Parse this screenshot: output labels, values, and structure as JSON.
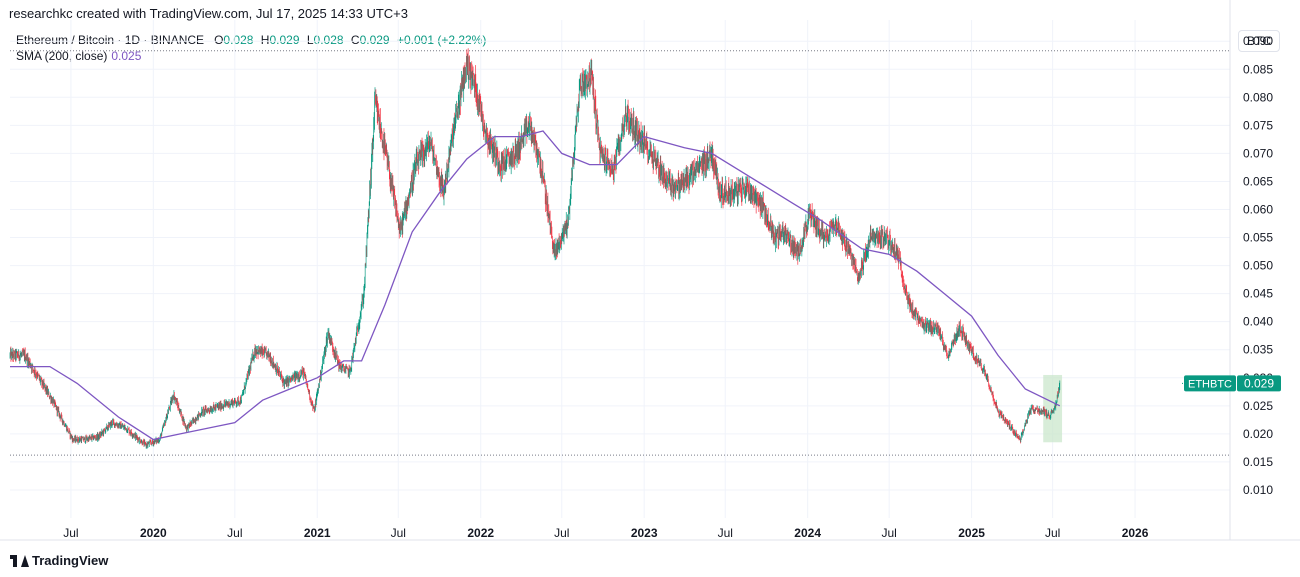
{
  "header": {
    "caption": "researchkc created with TradingView.com, Jul 17, 2025 14:33 UTC+3"
  },
  "legend": {
    "symbol": "Ethereum / Bitcoin · 1D · BINANCE",
    "open_label": "O",
    "open": "0.028",
    "high_label": "H",
    "high": "0.029",
    "low_label": "L",
    "low": "0.028",
    "close_label": "C",
    "close": "0.029",
    "change": "+0.001 (+2.22%)",
    "sma_label": "SMA (200, close)",
    "sma_value": "0.025"
  },
  "currency": "BTC",
  "price_tag": {
    "ticker": "ETHBTC",
    "price": "0.029"
  },
  "footer": {
    "brand": "TradingView"
  },
  "colors": {
    "up": "#089981",
    "down": "#f23645",
    "sma": "#7e57c2",
    "highlight": "#c8e6c9",
    "grid": "#f0f3fa",
    "text": "#131722"
  },
  "chart_data": {
    "type": "candlestick",
    "y_range": [
      0.005,
      0.092
    ],
    "y_ticks": [
      "0.090",
      "0.085",
      "0.080",
      "0.075",
      "0.070",
      "0.065",
      "0.060",
      "0.055",
      "0.050",
      "0.045",
      "0.040",
      "0.035",
      "0.030",
      "0.025",
      "0.020",
      "0.015",
      "0.010"
    ],
    "x_range": [
      "2019-02-15",
      "2026-08-01"
    ],
    "x_ticks": [
      {
        "label": "Jul",
        "date": "2019-07-01",
        "bold": false
      },
      {
        "label": "2020",
        "date": "2020-01-01",
        "bold": true
      },
      {
        "label": "Jul",
        "date": "2020-07-01",
        "bold": false
      },
      {
        "label": "2021",
        "date": "2021-01-01",
        "bold": true
      },
      {
        "label": "Jul",
        "date": "2021-07-01",
        "bold": false
      },
      {
        "label": "2022",
        "date": "2022-01-01",
        "bold": true
      },
      {
        "label": "Jul",
        "date": "2022-07-01",
        "bold": false
      },
      {
        "label": "2023",
        "date": "2023-01-01",
        "bold": true
      },
      {
        "label": "Jul",
        "date": "2023-07-01",
        "bold": false
      },
      {
        "label": "2024",
        "date": "2024-01-01",
        "bold": true
      },
      {
        "label": "Jul",
        "date": "2024-07-01",
        "bold": false
      },
      {
        "label": "2025",
        "date": "2025-01-01",
        "bold": true
      },
      {
        "label": "Jul",
        "date": "2025-07-01",
        "bold": false
      },
      {
        "label": "2026",
        "date": "2026-01-01",
        "bold": true
      }
    ],
    "horizontal_levels": [
      0.0883,
      0.0162
    ],
    "price_path": [
      [
        "2019-02-15",
        0.034
      ],
      [
        "2019-03-20",
        0.034
      ],
      [
        "2019-04-20",
        0.03
      ],
      [
        "2019-05-20",
        0.026
      ],
      [
        "2019-06-15",
        0.022
      ],
      [
        "2019-07-05",
        0.019
      ],
      [
        "2019-08-01",
        0.019
      ],
      [
        "2019-09-01",
        0.0195
      ],
      [
        "2019-10-01",
        0.022
      ],
      [
        "2019-11-01",
        0.021
      ],
      [
        "2019-12-15",
        0.018
      ],
      [
        "2020-01-15",
        0.019
      ],
      [
        "2020-02-15",
        0.027
      ],
      [
        "2020-03-15",
        0.021
      ],
      [
        "2020-04-20",
        0.024
      ],
      [
        "2020-06-01",
        0.025
      ],
      [
        "2020-07-15",
        0.026
      ],
      [
        "2020-08-15",
        0.035
      ],
      [
        "2020-09-15",
        0.034
      ],
      [
        "2020-10-20",
        0.029
      ],
      [
        "2020-12-01",
        0.031
      ],
      [
        "2020-12-25",
        0.024
      ],
      [
        "2021-01-25",
        0.038
      ],
      [
        "2021-02-20",
        0.032
      ],
      [
        "2021-03-15",
        0.031
      ],
      [
        "2021-04-15",
        0.045
      ],
      [
        "2021-05-10",
        0.079
      ],
      [
        "2021-06-05",
        0.069
      ],
      [
        "2021-07-05",
        0.056
      ],
      [
        "2021-08-10",
        0.068
      ],
      [
        "2021-09-10",
        0.072
      ],
      [
        "2021-10-10",
        0.063
      ],
      [
        "2021-11-01",
        0.074
      ],
      [
        "2021-12-01",
        0.086
      ],
      [
        "2021-12-20",
        0.082
      ],
      [
        "2022-01-15",
        0.073
      ],
      [
        "2022-02-15",
        0.068
      ],
      [
        "2022-03-20",
        0.07
      ],
      [
        "2022-04-20",
        0.075
      ],
      [
        "2022-05-15",
        0.068
      ],
      [
        "2022-06-15",
        0.052
      ],
      [
        "2022-07-15",
        0.058
      ],
      [
        "2022-08-10",
        0.082
      ],
      [
        "2022-09-05",
        0.084
      ],
      [
        "2022-09-25",
        0.07
      ],
      [
        "2022-10-25",
        0.067
      ],
      [
        "2022-11-20",
        0.077
      ],
      [
        "2022-12-20",
        0.073
      ],
      [
        "2023-01-25",
        0.069
      ],
      [
        "2023-02-20",
        0.065
      ],
      [
        "2023-03-15",
        0.064
      ],
      [
        "2023-04-15",
        0.066
      ],
      [
        "2023-05-10",
        0.068
      ],
      [
        "2023-06-01",
        0.07
      ],
      [
        "2023-06-20",
        0.063
      ],
      [
        "2023-07-20",
        0.063
      ],
      [
        "2023-08-20",
        0.064
      ],
      [
        "2023-09-20",
        0.061
      ],
      [
        "2023-10-20",
        0.055
      ],
      [
        "2023-11-10",
        0.056
      ],
      [
        "2023-12-10",
        0.052
      ],
      [
        "2024-01-05",
        0.059
      ],
      [
        "2024-02-10",
        0.055
      ],
      [
        "2024-03-01",
        0.058
      ],
      [
        "2024-03-25",
        0.054
      ],
      [
        "2024-04-25",
        0.048
      ],
      [
        "2024-05-20",
        0.055
      ],
      [
        "2024-06-25",
        0.055
      ],
      [
        "2024-07-20",
        0.052
      ],
      [
        "2024-08-15",
        0.043
      ],
      [
        "2024-09-15",
        0.039
      ],
      [
        "2024-10-15",
        0.039
      ],
      [
        "2024-11-10",
        0.034
      ],
      [
        "2024-12-05",
        0.039
      ],
      [
        "2025-01-05",
        0.034
      ],
      [
        "2025-02-01",
        0.031
      ],
      [
        "2025-03-01",
        0.024
      ],
      [
        "2025-04-01",
        0.021
      ],
      [
        "2025-04-20",
        0.019
      ],
      [
        "2025-05-12",
        0.0245
      ],
      [
        "2025-06-10",
        0.024
      ],
      [
        "2025-06-25",
        0.023
      ],
      [
        "2025-07-10",
        0.026
      ],
      [
        "2025-07-17",
        0.029
      ]
    ],
    "sma_200": [
      [
        "2019-02-15",
        0.032
      ],
      [
        "2019-05-15",
        0.032
      ],
      [
        "2019-07-15",
        0.029
      ],
      [
        "2019-10-15",
        0.023
      ],
      [
        "2020-01-01",
        0.019
      ],
      [
        "2020-03-01",
        0.02
      ],
      [
        "2020-05-01",
        0.021
      ],
      [
        "2020-07-01",
        0.022
      ],
      [
        "2020-09-01",
        0.026
      ],
      [
        "2020-11-01",
        0.028
      ],
      [
        "2021-01-01",
        0.03
      ],
      [
        "2021-03-01",
        0.033
      ],
      [
        "2021-04-10",
        0.033
      ],
      [
        "2021-06-01",
        0.043
      ],
      [
        "2021-08-01",
        0.056
      ],
      [
        "2021-10-01",
        0.063
      ],
      [
        "2021-12-01",
        0.069
      ],
      [
        "2022-02-01",
        0.073
      ],
      [
        "2022-04-01",
        0.073
      ],
      [
        "2022-05-20",
        0.074
      ],
      [
        "2022-07-01",
        0.07
      ],
      [
        "2022-09-01",
        0.068
      ],
      [
        "2022-11-01",
        0.068
      ],
      [
        "2023-01-01",
        0.073
      ],
      [
        "2023-04-01",
        0.071
      ],
      [
        "2023-06-01",
        0.07
      ],
      [
        "2023-08-01",
        0.067
      ],
      [
        "2023-10-01",
        0.064
      ],
      [
        "2023-12-01",
        0.061
      ],
      [
        "2024-02-01",
        0.058
      ],
      [
        "2024-05-01",
        0.053
      ],
      [
        "2024-07-01",
        0.052
      ],
      [
        "2024-09-01",
        0.049
      ],
      [
        "2024-11-01",
        0.045
      ],
      [
        "2025-01-01",
        0.041
      ],
      [
        "2025-03-01",
        0.034
      ],
      [
        "2025-05-01",
        0.028
      ],
      [
        "2025-07-17",
        0.025
      ]
    ],
    "highlight_box": {
      "x": [
        "2025-06-10",
        "2025-07-22"
      ],
      "y": [
        0.0185,
        0.0305
      ]
    },
    "grid": true
  }
}
